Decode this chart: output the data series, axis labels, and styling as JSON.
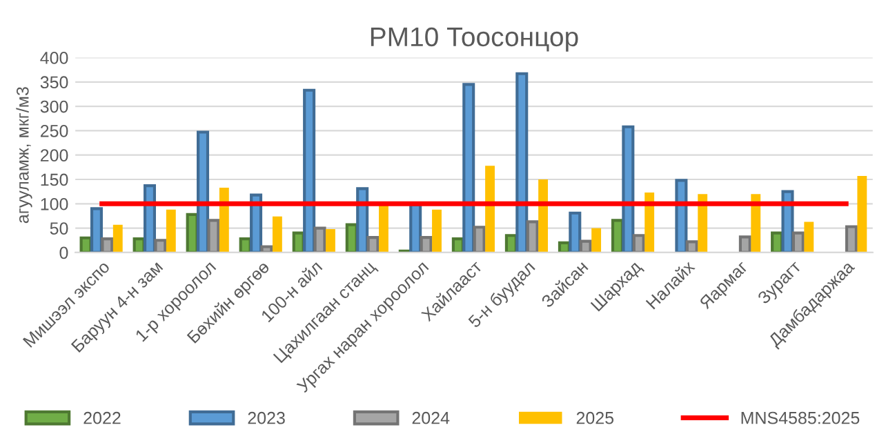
{
  "chart_data": {
    "type": "bar",
    "title": "PM10 Тоосонцор",
    "ylabel": "агууламж, мкг/м3",
    "categories": [
      "Мишээл экспо",
      "Баруун 4-н зам",
      "1-р хороолол",
      "Бөхийн өргөө",
      "100-н айл",
      "Цахилгаан станц",
      "Ургах наран хороолол",
      "Хайлааст",
      "5-н буудал",
      "Зайсан",
      "Шархад",
      "Налайх",
      "Яармаг",
      "Зурагт",
      "Дамбадаржаа"
    ],
    "series": [
      {
        "name": "2022",
        "color": "#70ad47",
        "values": [
          30,
          28,
          78,
          28,
          40,
          57,
          3,
          28,
          35,
          20,
          66,
          null,
          null,
          40,
          null
        ]
      },
      {
        "name": "2023",
        "color": "#5b9bd5",
        "values": [
          90,
          137,
          247,
          118,
          333,
          131,
          98,
          345,
          367,
          81,
          258,
          148,
          null,
          125,
          null
        ]
      },
      {
        "name": "2024",
        "color": "#a5a5a5",
        "values": [
          28,
          25,
          66,
          12,
          50,
          31,
          31,
          52,
          63,
          23,
          35,
          22,
          32,
          40,
          53
        ]
      },
      {
        "name": "2025",
        "color": "#ffc000",
        "values": [
          57,
          88,
          133,
          74,
          48,
          98,
          88,
          178,
          150,
          50,
          123,
          120,
          120,
          63,
          157
        ]
      },
      {
        "name": "MNS4585:2025",
        "type": "line",
        "color": "#ff0000",
        "values": [
          100,
          100,
          100,
          100,
          100,
          100,
          100,
          100,
          100,
          100,
          100,
          100,
          100,
          100,
          100
        ]
      }
    ],
    "ylim": [
      0,
      400
    ],
    "yticks": [
      0,
      50,
      100,
      150,
      200,
      250,
      300,
      350,
      400
    ],
    "grid": "y",
    "legend": "bottom"
  }
}
